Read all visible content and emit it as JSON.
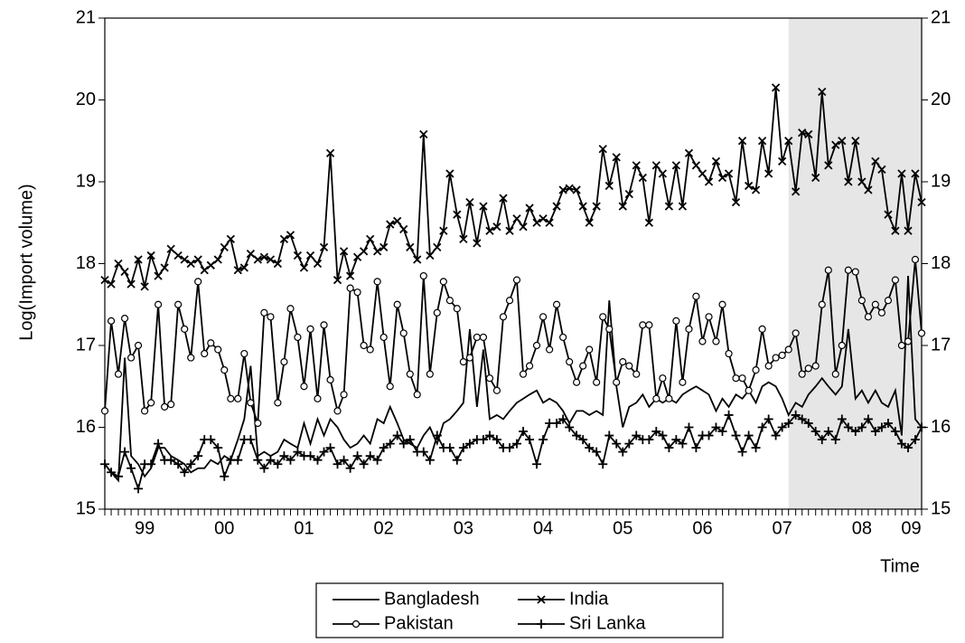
{
  "chart_data": {
    "type": "line",
    "y_label": "Log(Import volume)",
    "x_label": "Time",
    "xlim": [
      1999.0,
      2009.25
    ],
    "ylim": [
      15,
      21
    ],
    "yticks": [
      15,
      16,
      17,
      18,
      19,
      20,
      21
    ],
    "xticks": [
      {
        "value": 1999.5,
        "label": "99"
      },
      {
        "value": 2000.5,
        "label": "00"
      },
      {
        "value": 2001.5,
        "label": "01"
      },
      {
        "value": 2002.5,
        "label": "02"
      },
      {
        "value": 2003.5,
        "label": "03"
      },
      {
        "value": 2004.5,
        "label": "04"
      },
      {
        "value": 2005.5,
        "label": "05"
      },
      {
        "value": 2006.5,
        "label": "06"
      },
      {
        "value": 2007.5,
        "label": "07"
      },
      {
        "value": 2008.5,
        "label": "08"
      },
      {
        "value": 2009.12,
        "label": "09"
      }
    ],
    "shaded_region": [
      2007.58,
      2009.25
    ],
    "shade_color": "#e6e6e6",
    "x": [
      1999.0,
      1999.08,
      1999.17,
      1999.25,
      1999.33,
      1999.42,
      1999.5,
      1999.58,
      1999.67,
      1999.75,
      1999.83,
      1999.92,
      2000.0,
      2000.08,
      2000.17,
      2000.25,
      2000.33,
      2000.42,
      2000.5,
      2000.58,
      2000.67,
      2000.75,
      2000.83,
      2000.92,
      2001.0,
      2001.08,
      2001.17,
      2001.25,
      2001.33,
      2001.42,
      2001.5,
      2001.58,
      2001.67,
      2001.75,
      2001.83,
      2001.92,
      2002.0,
      2002.08,
      2002.17,
      2002.25,
      2002.33,
      2002.42,
      2002.5,
      2002.58,
      2002.67,
      2002.75,
      2002.83,
      2002.92,
      2003.0,
      2003.08,
      2003.17,
      2003.25,
      2003.33,
      2003.42,
      2003.5,
      2003.58,
      2003.67,
      2003.75,
      2003.83,
      2003.92,
      2004.0,
      2004.08,
      2004.17,
      2004.25,
      2004.33,
      2004.42,
      2004.5,
      2004.58,
      2004.67,
      2004.75,
      2004.83,
      2004.92,
      2005.0,
      2005.08,
      2005.17,
      2005.25,
      2005.33,
      2005.42,
      2005.5,
      2005.58,
      2005.67,
      2005.75,
      2005.83,
      2005.92,
      2006.0,
      2006.08,
      2006.17,
      2006.25,
      2006.33,
      2006.42,
      2006.5,
      2006.58,
      2006.67,
      2006.75,
      2006.83,
      2006.92,
      2007.0,
      2007.08,
      2007.17,
      2007.25,
      2007.33,
      2007.42,
      2007.5,
      2007.58,
      2007.67,
      2007.75,
      2007.83,
      2007.92,
      2008.0,
      2008.08,
      2008.17,
      2008.25,
      2008.33,
      2008.42,
      2008.5,
      2008.58,
      2008.67,
      2008.75,
      2008.83,
      2008.92,
      2009.0,
      2009.08,
      2009.17,
      2009.25
    ],
    "series": [
      {
        "name": "Bangladesh",
        "color": "#000000",
        "marker": "none",
        "values": [
          15.55,
          15.45,
          15.35,
          16.85,
          15.65,
          15.55,
          15.4,
          15.5,
          15.75,
          15.75,
          15.65,
          15.6,
          15.55,
          15.45,
          15.5,
          15.5,
          15.6,
          15.55,
          15.65,
          15.6,
          15.85,
          16.1,
          16.75,
          15.65,
          15.7,
          15.65,
          15.7,
          15.85,
          15.8,
          15.75,
          16.05,
          15.8,
          16.1,
          15.9,
          16.1,
          16.0,
          15.85,
          15.75,
          15.8,
          15.9,
          15.8,
          16.1,
          16.05,
          16.25,
          16.05,
          15.85,
          15.8,
          15.75,
          15.9,
          16.0,
          15.8,
          16.05,
          16.1,
          16.2,
          16.3,
          17.2,
          16.25,
          16.95,
          16.1,
          16.15,
          16.1,
          16.2,
          16.3,
          16.35,
          16.4,
          16.45,
          16.3,
          16.35,
          16.3,
          16.2,
          16.05,
          16.2,
          16.2,
          16.15,
          16.2,
          16.15,
          17.55,
          16.5,
          16.0,
          16.25,
          16.3,
          16.4,
          16.25,
          16.35,
          16.3,
          16.35,
          16.3,
          16.4,
          16.45,
          16.5,
          16.45,
          16.4,
          16.2,
          16.35,
          16.25,
          16.4,
          16.35,
          16.45,
          16.3,
          16.5,
          16.55,
          16.5,
          16.35,
          16.15,
          16.3,
          16.25,
          16.4,
          16.5,
          16.6,
          16.5,
          16.4,
          16.5,
          17.2,
          16.35,
          16.45,
          16.3,
          16.45,
          16.3,
          16.25,
          16.45,
          15.9,
          17.85,
          16.1,
          16.0
        ]
      },
      {
        "name": "India",
        "color": "#000000",
        "marker": "x",
        "values": [
          17.8,
          17.75,
          18.0,
          17.9,
          17.75,
          18.05,
          17.72,
          18.1,
          17.85,
          17.95,
          18.18,
          18.1,
          18.05,
          18.0,
          18.05,
          17.92,
          17.98,
          18.05,
          18.2,
          18.3,
          17.92,
          17.95,
          18.12,
          18.05,
          18.08,
          18.05,
          18.0,
          18.3,
          18.35,
          18.1,
          17.95,
          18.1,
          18.0,
          18.2,
          19.35,
          17.8,
          18.15,
          17.85,
          18.08,
          18.15,
          18.3,
          18.15,
          18.2,
          18.48,
          18.52,
          18.42,
          18.2,
          18.05,
          19.58,
          18.1,
          18.2,
          18.4,
          19.1,
          18.6,
          18.3,
          18.75,
          18.25,
          18.7,
          18.4,
          18.45,
          18.8,
          18.4,
          18.55,
          18.45,
          18.68,
          18.5,
          18.55,
          18.5,
          18.7,
          18.9,
          18.92,
          18.9,
          18.7,
          18.5,
          18.7,
          19.4,
          18.95,
          19.3,
          18.7,
          18.85,
          19.2,
          19.05,
          18.5,
          19.2,
          19.1,
          18.7,
          19.2,
          18.7,
          19.35,
          19.2,
          19.1,
          19.0,
          19.25,
          19.05,
          19.1,
          18.75,
          19.5,
          18.95,
          18.9,
          19.5,
          19.1,
          20.15,
          19.25,
          19.5,
          18.88,
          19.6,
          19.58,
          19.05,
          20.1,
          19.2,
          19.45,
          19.5,
          19.0,
          19.5,
          19.0,
          18.9,
          19.25,
          19.15,
          18.6,
          18.4,
          19.1,
          18.4,
          19.1,
          18.75
        ]
      },
      {
        "name": "Pakistan",
        "color": "#000000",
        "marker": "circle",
        "values": [
          16.2,
          17.3,
          16.65,
          17.33,
          16.85,
          17.0,
          16.2,
          16.3,
          17.5,
          16.25,
          16.28,
          17.5,
          17.2,
          16.85,
          17.78,
          16.9,
          17.03,
          16.95,
          16.7,
          16.35,
          16.35,
          16.9,
          16.3,
          16.05,
          17.4,
          17.35,
          16.3,
          16.8,
          17.45,
          17.1,
          16.5,
          17.2,
          16.35,
          17.25,
          16.58,
          16.2,
          16.4,
          17.7,
          17.65,
          17.0,
          16.95,
          17.78,
          17.1,
          16.5,
          17.5,
          17.15,
          16.65,
          16.4,
          17.85,
          16.65,
          17.4,
          17.78,
          17.55,
          17.45,
          16.8,
          16.85,
          17.1,
          17.1,
          16.6,
          16.45,
          17.35,
          17.55,
          17.8,
          16.65,
          16.75,
          17.0,
          17.35,
          16.95,
          17.5,
          17.1,
          16.8,
          16.55,
          16.75,
          16.95,
          16.55,
          17.35,
          17.2,
          16.55,
          16.8,
          16.75,
          16.65,
          17.25,
          17.25,
          16.35,
          16.6,
          16.35,
          17.3,
          16.55,
          17.2,
          17.6,
          17.05,
          17.35,
          17.05,
          17.5,
          16.9,
          16.6,
          16.6,
          16.45,
          16.7,
          17.2,
          16.75,
          16.85,
          16.88,
          16.95,
          17.15,
          16.65,
          16.72,
          16.75,
          17.5,
          17.92,
          16.65,
          17.0,
          17.92,
          17.9,
          17.55,
          17.35,
          17.5,
          17.4,
          17.55,
          17.8,
          17.0,
          17.05,
          18.05,
          17.15
        ]
      },
      {
        "name": "Sri Lanka",
        "color": "#000000",
        "marker": "plus",
        "values": [
          15.55,
          15.45,
          15.4,
          15.7,
          15.5,
          15.25,
          15.55,
          15.55,
          15.8,
          15.6,
          15.6,
          15.55,
          15.45,
          15.55,
          15.65,
          15.85,
          15.85,
          15.75,
          15.4,
          15.6,
          15.6,
          15.85,
          15.85,
          15.6,
          15.5,
          15.6,
          15.55,
          15.65,
          15.6,
          15.7,
          15.65,
          15.65,
          15.6,
          15.7,
          15.75,
          15.55,
          15.6,
          15.5,
          15.65,
          15.55,
          15.65,
          15.6,
          15.75,
          15.8,
          15.9,
          15.8,
          15.85,
          15.7,
          15.7,
          15.6,
          15.9,
          15.75,
          15.75,
          15.6,
          15.75,
          15.8,
          15.85,
          15.85,
          15.9,
          15.85,
          15.75,
          15.75,
          15.8,
          15.95,
          15.85,
          15.55,
          15.85,
          16.05,
          16.05,
          16.1,
          16.0,
          15.9,
          15.85,
          15.75,
          15.7,
          15.55,
          15.9,
          15.8,
          15.7,
          15.8,
          15.9,
          15.85,
          15.85,
          15.95,
          15.9,
          15.75,
          15.85,
          15.8,
          16.0,
          15.75,
          15.9,
          15.9,
          16.0,
          15.95,
          16.15,
          15.9,
          15.7,
          15.9,
          15.75,
          16.0,
          16.1,
          15.9,
          16.0,
          16.05,
          16.15,
          16.1,
          16.05,
          15.95,
          15.85,
          15.95,
          15.85,
          16.1,
          16.0,
          15.95,
          16.0,
          16.1,
          15.95,
          16.0,
          16.05,
          15.95,
          15.8,
          15.75,
          15.85,
          16.0
        ]
      }
    ]
  }
}
